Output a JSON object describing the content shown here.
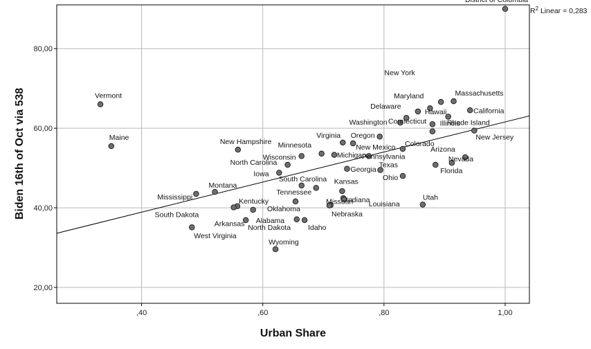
{
  "chart_data": {
    "type": "scatter",
    "xlabel": "Urban Share",
    "ylabel": "Biden 16th of Oct via 538",
    "xlim": [
      0.26,
      1.04
    ],
    "ylim": [
      16,
      91
    ],
    "xticks": [
      0.4,
      0.6,
      0.8,
      1.0
    ],
    "xtick_labels": [
      ",40",
      ",60",
      ",80",
      "1,00"
    ],
    "yticks": [
      20,
      40,
      60,
      80
    ],
    "ytick_labels": [
      "20,00",
      "40,00",
      "60,00",
      "80,00"
    ],
    "grid": true,
    "fit_line": {
      "label": "R² Linear = 0,283",
      "r2_prefix": "R",
      "r2_sup": "2",
      "r2_suffix": " Linear = 0,283",
      "x": [
        0.26,
        1.04
      ],
      "y": [
        33.6,
        63.1
      ]
    },
    "points": [
      {
        "label": "District of Columbia",
        "x": 1.0,
        "y": 90.0
      },
      {
        "label": "New York",
        "x": 0.876,
        "y": 65.0
      },
      {
        "label": "Massachusetts",
        "x": 0.915,
        "y": 66.8
      },
      {
        "label": "Maryland",
        "x": 0.894,
        "y": 66.6
      },
      {
        "label": "Hawaii",
        "x": 0.856,
        "y": 64.2
      },
      {
        "label": "California",
        "x": 0.942,
        "y": 64.5
      },
      {
        "label": "Delaware",
        "x": 0.837,
        "y": 62.6
      },
      {
        "label": "Washington",
        "x": 0.827,
        "y": 61.4
      },
      {
        "label": "Connecticut",
        "x": 0.88,
        "y": 61.0
      },
      {
        "label": "Illinois",
        "x": 0.906,
        "y": 62.9
      },
      {
        "label": "Rhode Island",
        "x": 0.88,
        "y": 59.2
      },
      {
        "label": "New Jersey",
        "x": 0.949,
        "y": 59.4
      },
      {
        "label": "Oregon",
        "x": 0.793,
        "y": 57.9
      },
      {
        "label": "Virginia",
        "x": 0.732,
        "y": 56.4
      },
      {
        "label": "New Mexico",
        "x": 0.749,
        "y": 56.2
      },
      {
        "label": "Colorado",
        "x": 0.831,
        "y": 54.8
      },
      {
        "label": "Minnesota",
        "x": 0.697,
        "y": 53.6
      },
      {
        "label": "Michigan",
        "x": 0.718,
        "y": 53.3
      },
      {
        "label": "Pennsylvania",
        "x": 0.775,
        "y": 53.0
      },
      {
        "label": "Wisconsin",
        "x": 0.664,
        "y": 53.0
      },
      {
        "label": "Arizona",
        "x": 0.934,
        "y": 52.7
      },
      {
        "label": "Nevada",
        "x": 0.912,
        "y": 51.3
      },
      {
        "label": "Florida",
        "x": 0.885,
        "y": 50.8
      },
      {
        "label": "Georgia",
        "x": 0.739,
        "y": 49.8
      },
      {
        "label": "North Carolina",
        "x": 0.641,
        "y": 50.8
      },
      {
        "label": "Texas",
        "x": 0.794,
        "y": 49.5
      },
      {
        "label": "Iowa",
        "x": 0.627,
        "y": 48.8
      },
      {
        "label": "Ohio",
        "x": 0.831,
        "y": 48.0
      },
      {
        "label": "South Carolina",
        "x": 0.664,
        "y": 45.6
      },
      {
        "label": "Kansas",
        "x": 0.688,
        "y": 45.0
      },
      {
        "label": "Tennessee",
        "x": 0.731,
        "y": 44.2
      },
      {
        "label": "Missouri",
        "x": 0.733,
        "y": 42.4
      },
      {
        "label": "Indiana",
        "x": 0.734,
        "y": 42.1
      },
      {
        "label": "Louisiana",
        "x": 0.712,
        "y": 40.7
      },
      {
        "label": "Montana",
        "x": 0.521,
        "y": 44.0
      },
      {
        "label": "Mississippi",
        "x": 0.49,
        "y": 43.5
      },
      {
        "label": "Kentucky",
        "x": 0.558,
        "y": 40.4
      },
      {
        "label": "South Dakota",
        "x": 0.552,
        "y": 40.1
      },
      {
        "label": "Alabama",
        "x": 0.584,
        "y": 39.5
      },
      {
        "label": "Oklahoma",
        "x": 0.654,
        "y": 41.6
      },
      {
        "label": "Nebraska",
        "x": 0.71,
        "y": 40.6
      },
      {
        "label": "Utah",
        "x": 0.864,
        "y": 40.8
      },
      {
        "label": "North Dakota",
        "x": 0.572,
        "y": 36.9
      },
      {
        "label": "Idaho",
        "x": 0.669,
        "y": 36.9
      },
      {
        "label": "Arkansas",
        "x": 0.656,
        "y": 37.1
      },
      {
        "label": "West Virginia",
        "x": 0.483,
        "y": 35.1
      },
      {
        "label": "Wyoming",
        "x": 0.621,
        "y": 29.6
      },
      {
        "label": "New Hampshire",
        "x": 0.559,
        "y": 54.6
      },
      {
        "label": "Vermont",
        "x": 0.332,
        "y": 66.0
      },
      {
        "label": "Maine",
        "x": 0.35,
        "y": 55.5
      }
    ]
  }
}
